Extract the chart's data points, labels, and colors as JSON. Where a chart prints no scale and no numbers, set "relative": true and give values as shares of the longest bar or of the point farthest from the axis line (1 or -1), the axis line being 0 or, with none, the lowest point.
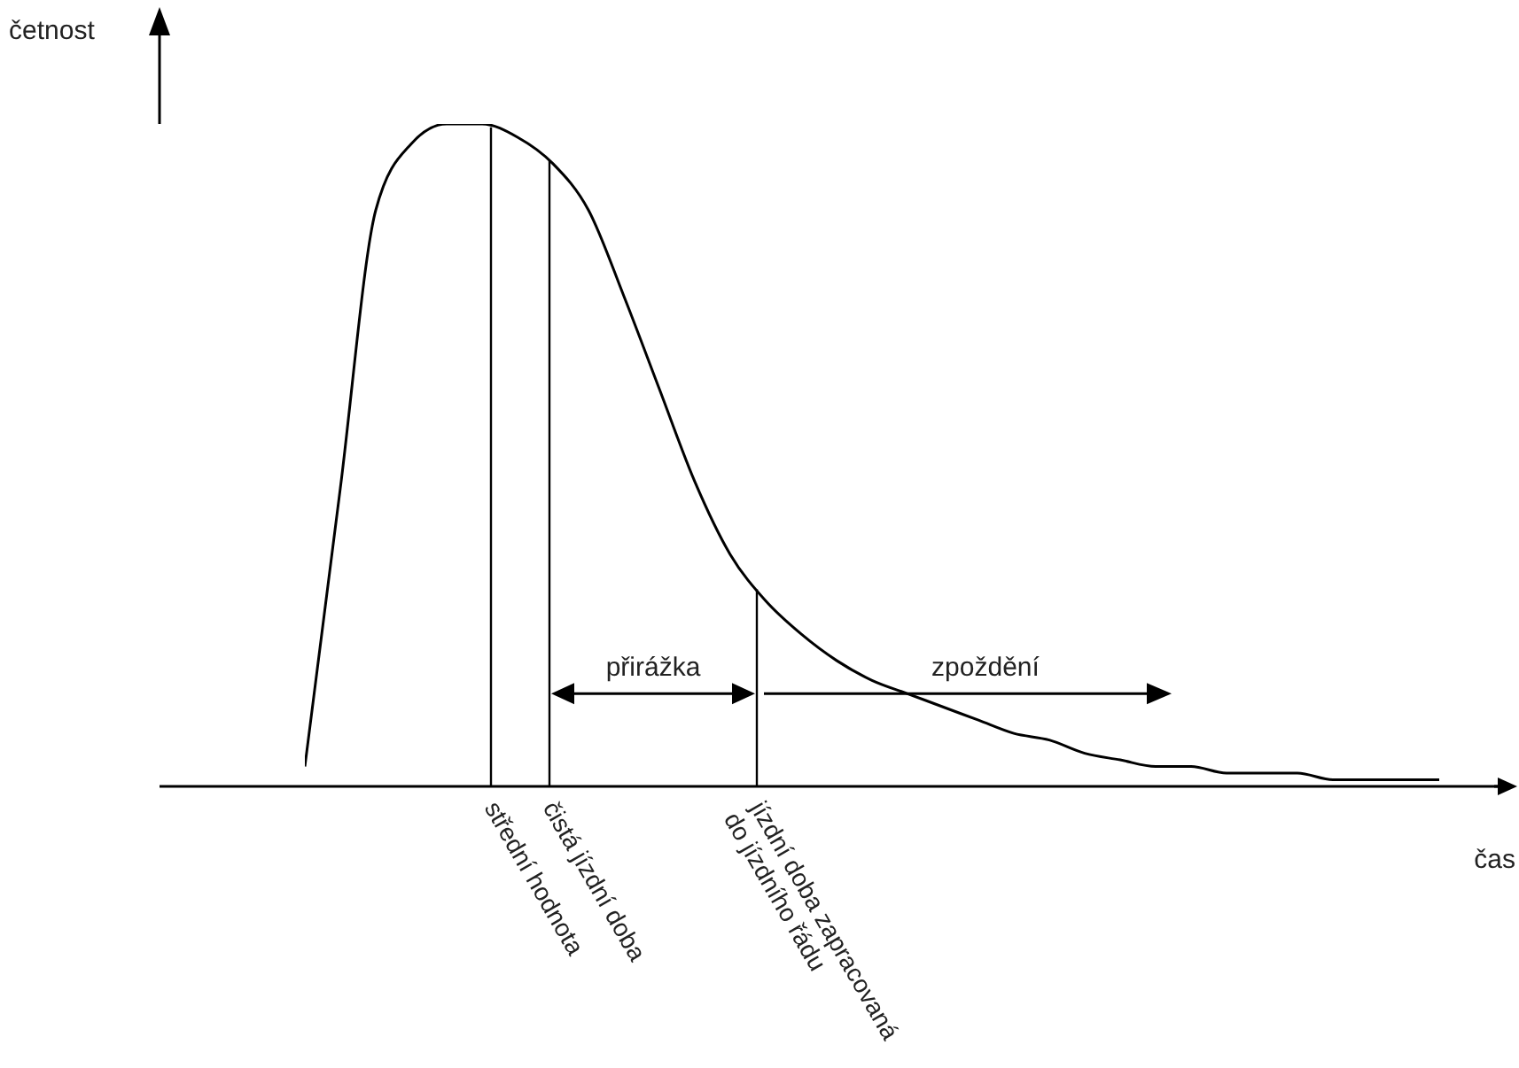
{
  "chart_data": {
    "type": "line",
    "relative": true,
    "xlabel": "čas",
    "marker": "none",
    "line_style": "solid",
    "categories": [
      null,
      null,
      null,
      null,
      null,
      null,
      null,
      null,
      null,
      null,
      null,
      null,
      null,
      null,
      null,
      null,
      null,
      null,
      null,
      null,
      null,
      null,
      null,
      null,
      null,
      null,
      null,
      null,
      null,
      null,
      null,
      null,
      null
    ],
    "series": [
      {
        "color": "#000000",
        "values": [
          0.03,
          0.45,
          0.87,
          0.97,
          1,
          1,
          0.98,
          0.94,
          0.87,
          0.74,
          0.6,
          0.46,
          0.35,
          0.28,
          0.23,
          0.19,
          0.16,
          0.14,
          0.12,
          0.1,
          0.08,
          0.07,
          0.05,
          0.04,
          0.03,
          0.03,
          0.02,
          0.02,
          0.02,
          0.01,
          0.01,
          0.01,
          0.01
        ]
      }
    ],
    "annotations": [
      "četnost",
      "střední hodnota",
      "čistá jízdní doba",
      "jízdní doba zapracovaná\ndo jízdního řádu",
      "přirážka",
      "zpoždění"
    ]
  }
}
